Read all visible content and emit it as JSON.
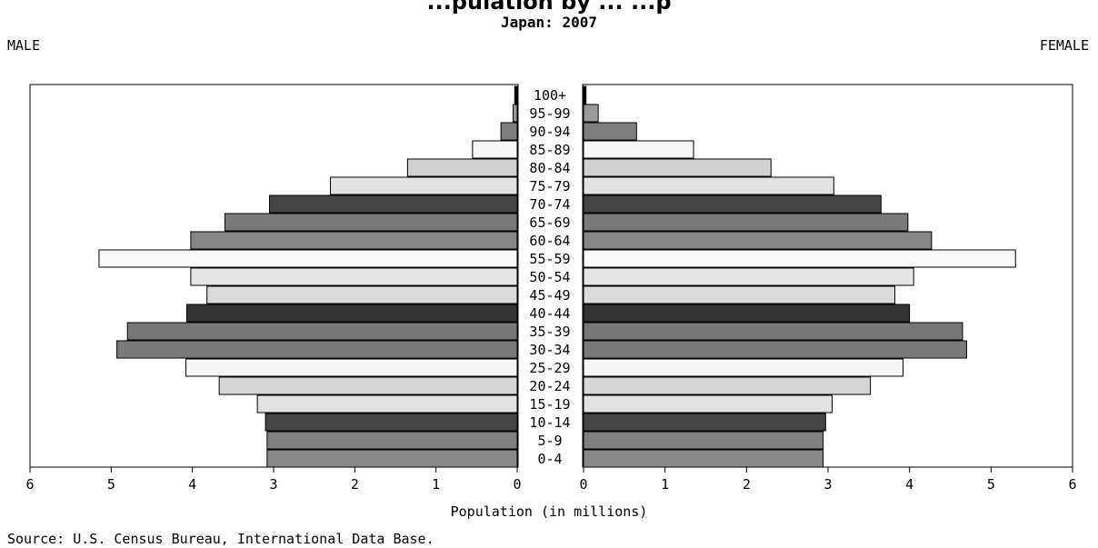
{
  "chart_data": {
    "type": "bar",
    "title": "Japan: 2007",
    "partial_heading": "...pulation by ... ...p",
    "left_label": "MALE",
    "right_label": "FEMALE",
    "xlabel": "Population (in millions)",
    "source": "Source: U.S. Census Bureau, International Data Base.",
    "xlim": [
      0,
      6
    ],
    "ticks": [
      6,
      5,
      4,
      3,
      2,
      1,
      0
    ],
    "tick_labels_left": [
      "6",
      "5",
      "4",
      "3",
      "2",
      "1",
      "0"
    ],
    "tick_labels_right": [
      "0",
      "1",
      "2",
      "3",
      "4",
      "5",
      "6"
    ],
    "categories": [
      "100+",
      "95-99",
      "90-94",
      "85-89",
      "80-84",
      "75-79",
      "70-74",
      "65-69",
      "60-64",
      "55-59",
      "50-54",
      "45-49",
      "40-44",
      "35-39",
      "30-34",
      "25-29",
      "20-24",
      "15-19",
      "10-14",
      "5-9",
      "0-4"
    ],
    "series": [
      {
        "name": "MALE",
        "values": [
          0.03,
          0.05,
          0.2,
          0.55,
          1.35,
          2.3,
          3.05,
          3.6,
          4.02,
          5.15,
          4.02,
          3.82,
          4.07,
          4.8,
          4.93,
          4.08,
          3.67,
          3.2,
          3.1,
          3.08,
          3.08
        ]
      },
      {
        "name": "FEMALE",
        "values": [
          0.03,
          0.18,
          0.65,
          1.35,
          2.3,
          3.07,
          3.65,
          3.98,
          4.27,
          5.3,
          4.05,
          3.82,
          4.0,
          4.65,
          4.7,
          3.92,
          3.52,
          3.05,
          2.97,
          2.94,
          2.94
        ]
      }
    ],
    "bar_colors": [
      "#000000",
      "#9a9a9a",
      "#7f7f7f",
      "#f6f6f6",
      "#d0d0d0",
      "#e2e2e2",
      "#444444",
      "#7a7a7a",
      "#858585",
      "#f8f8f8",
      "#e6e6e6",
      "#dadada",
      "#333333",
      "#777777",
      "#7a7a7a",
      "#f5f5f5",
      "#d6d6d6",
      "#e2e2e2",
      "#444444",
      "#808080",
      "#888888"
    ],
    "grid": false
  }
}
